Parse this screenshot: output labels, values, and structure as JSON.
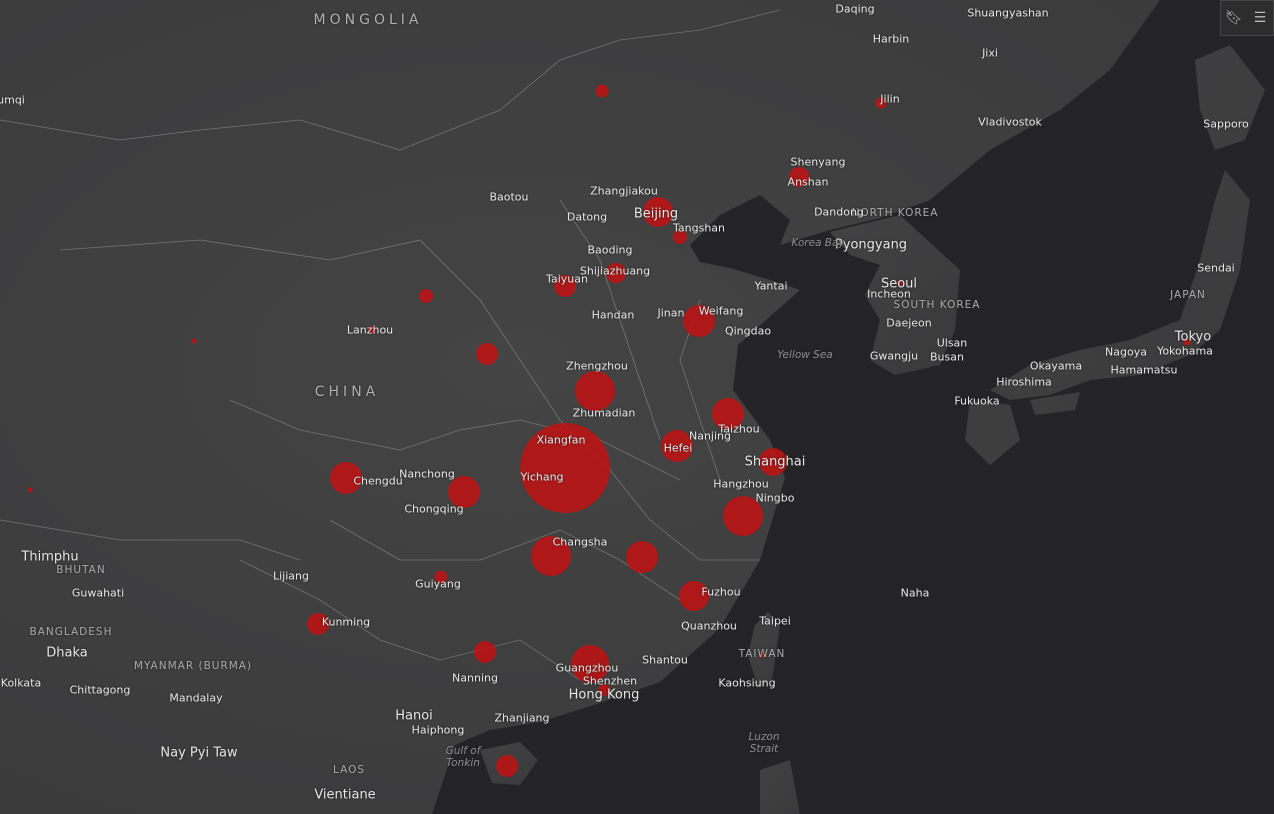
{
  "map": {
    "land_color": "#3e3e3e",
    "water_color": "#242427",
    "marker_color": "#be1212",
    "labels": [
      "MONGOLIA",
      "CHINA",
      "NORTH KOREA",
      "SOUTH KOREA",
      "JAPAN",
      "TAIWAN",
      "BHUTAN",
      "BANGLADESH",
      "MYANMAR (BURMA)",
      "LAOS",
      "Daqing",
      "Shuangyashan",
      "Harbin",
      "Jixi",
      "Jilin",
      "Vladivostok",
      "Sapporo",
      "Shenyang",
      "Anshan",
      "Dandong",
      "Pyongyang",
      "Seoul",
      "Incheon",
      "Daejeon",
      "Sendai",
      "Tokyo",
      "Yokohama",
      "Ulsan",
      "Busan",
      "Gwangju",
      "Nagoya",
      "Okayama",
      "Hamamatsu",
      "Hiroshima",
      "Fukuoka",
      "Baotou",
      "Zhangjiakou",
      "Datong",
      "Beijing",
      "Tangshan",
      "Baoding",
      "Shijiazhuang",
      "Taiyuan",
      "Yantai",
      "Jinan",
      "Weifang",
      "Qingdao",
      "Handan",
      "Lanzhou",
      "Zhengzhou",
      "Zhumadian",
      "Taizhou",
      "Nanjing",
      "Hefei",
      "Xiangfan",
      "Yichang",
      "Shanghai",
      "Hangzhou",
      "Ningbo",
      "Chengdu",
      "Nanchong",
      "Chongqing",
      "Changsha",
      "Guiyang",
      "Lijiang",
      "Kunming",
      "Fuzhou",
      "Quanzhou",
      "Taipei",
      "Naha",
      "Kaohsiung",
      "Shantou",
      "Guangzhou",
      "Shenzhen",
      "Hong Kong",
      "Nanning",
      "Zhanjiang",
      "Hanoi",
      "Haiphong",
      "Thimphu",
      "Guwahati",
      "Dhaka",
      "Kolkata",
      "Chittagong",
      "Mandalay",
      "Nay Pyi Taw",
      "Vientiane",
      "umqi",
      "Korea Bay",
      "Yellow Sea",
      "Gulf of Tonkin",
      "Luzon Strait"
    ],
    "toolbar": {
      "icons": [
        "bookmark-icon",
        "legend-list-icon"
      ]
    }
  }
}
